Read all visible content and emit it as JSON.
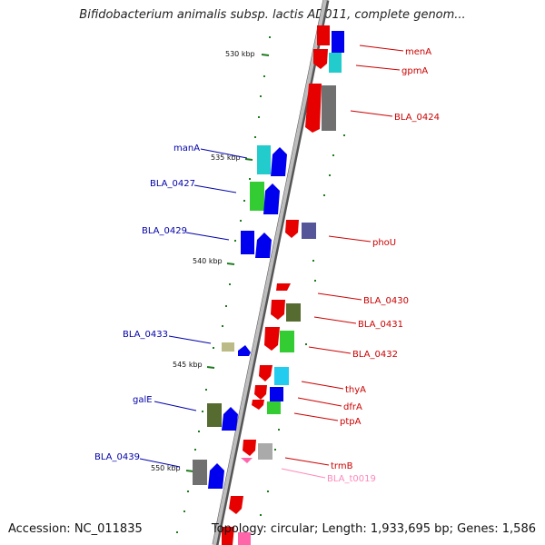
{
  "title": "Bifidobacterium animalis subsp. lactis AD011, complete genom...",
  "footer": {
    "accession": "Accession: NC_011835",
    "topology": "Topology: circular; Length: 1,933,695 bp; Genes: 1,586"
  },
  "colors": {
    "backbone": "#7f7f7f",
    "tick": "#1f7a1f",
    "right_label": "#cc0000",
    "left_label": "#0000aa",
    "trna_label": "#ff88bb"
  },
  "kbp_ticks": [
    "530 kbp",
    "535 kbp",
    "540 kbp",
    "545 kbp",
    "550 kbp"
  ],
  "genes_right": [
    {
      "name": "menA",
      "color": "#cc0000"
    },
    {
      "name": "gpmA",
      "color": "#cc0000"
    },
    {
      "name": "BLA_0424",
      "color": "#cc0000"
    },
    {
      "name": "phoU",
      "color": "#cc0000"
    },
    {
      "name": "BLA_0430",
      "color": "#cc0000"
    },
    {
      "name": "BLA_0431",
      "color": "#cc0000"
    },
    {
      "name": "BLA_0432",
      "color": "#cc0000"
    },
    {
      "name": "thyA",
      "color": "#cc0000"
    },
    {
      "name": "dfrA",
      "color": "#cc0000"
    },
    {
      "name": "ptpA",
      "color": "#cc0000"
    },
    {
      "name": "trmB",
      "color": "#cc0000"
    },
    {
      "name": "BLA_t0019",
      "color": "#ff88bb"
    }
  ],
  "genes_left": [
    {
      "name": "manA"
    },
    {
      "name": "BLA_0427"
    },
    {
      "name": "BLA_0429"
    },
    {
      "name": "BLA_0433"
    },
    {
      "name": "galE"
    },
    {
      "name": "BLA_0439"
    }
  ],
  "cog_colors": [
    "#ff0000",
    "#0000ff",
    "#00cccc",
    "#707070",
    "#33cc33",
    "#556b2f",
    "#555599",
    "#bbbb88",
    "#ff66aa",
    "#aaaaaa"
  ]
}
